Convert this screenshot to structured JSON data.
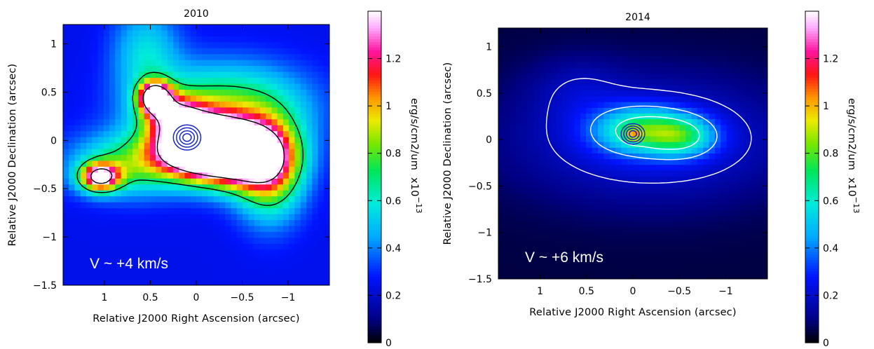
{
  "chart_data": [
    {
      "type": "heatmap",
      "title": "2010",
      "xlabel": "Relative J2000 Right Ascension (arcsec)",
      "ylabel": "Relative J2000 Declination (arcsec)",
      "xlim": [
        1.45,
        -1.45
      ],
      "ylim": [
        -1.5,
        1.2
      ],
      "xticks": [
        1,
        0.5,
        0,
        -0.5,
        -1
      ],
      "xtick_labels": [
        "1",
        "0.5",
        "0",
        "−0.5",
        "−1"
      ],
      "yticks": [
        1,
        0.5,
        0,
        -0.5,
        -1,
        -1.5
      ],
      "ytick_labels": [
        "1",
        "0.5",
        "0",
        "−0.5",
        "−1",
        "−1.5"
      ],
      "annotation": "V ~ +4 km/s",
      "colorbar": {
        "label": "erg/s/cm2/um",
        "scale": "x10",
        "scale_exp": "−13",
        "range": [
          0,
          1.4
        ],
        "ticks": [
          0,
          0.2,
          0.4,
          0.6,
          0.8,
          1,
          1.2
        ],
        "tick_labels": [
          "0",
          "0.2",
          "0.4",
          "0.6",
          "0.8",
          "1",
          "1.2"
        ]
      },
      "emission": {
        "background": 0.25,
        "components": [
          {
            "x": 0.0,
            "y": -0.05,
            "sx": 0.32,
            "sy": 0.2,
            "amp": 1.5
          },
          {
            "x": -0.45,
            "y": -0.15,
            "sx": 0.35,
            "sy": 0.22,
            "amp": 1.4
          },
          {
            "x": 0.45,
            "y": 0.45,
            "sx": 0.12,
            "sy": 0.11,
            "amp": 1.2
          },
          {
            "x": 0.25,
            "y": 0.28,
            "sx": 0.22,
            "sy": 0.14,
            "amp": 0.6
          },
          {
            "x": 1.05,
            "y": -0.38,
            "sx": 0.15,
            "sy": 0.1,
            "amp": 1.05
          },
          {
            "x": 0.7,
            "y": -0.25,
            "sx": 0.45,
            "sy": 0.22,
            "amp": 0.5
          },
          {
            "x": -0.8,
            "y": -0.3,
            "sx": 0.25,
            "sy": 0.35,
            "amp": 0.7
          },
          {
            "x": -0.3,
            "y": 0.35,
            "sx": 0.6,
            "sy": 0.3,
            "amp": 0.55
          },
          {
            "x": 0.55,
            "y": 0.9,
            "sx": 0.25,
            "sy": 0.35,
            "amp": 0.3
          }
        ]
      },
      "contour_levels": [
        0.7,
        1.35
      ],
      "contour_color": "#000000",
      "compact_source": {
        "x": 0.1,
        "y": 0.03,
        "color": "#1a28c8",
        "radii": [
          0.04,
          0.07,
          0.1,
          0.13
        ]
      }
    },
    {
      "type": "heatmap",
      "title": "2014",
      "xlabel": "Relative J2000 Right Ascension (arcsec)",
      "ylabel": "Relative J2000 Declination (arcsec)",
      "xlim": [
        1.45,
        -1.45
      ],
      "ylim": [
        -1.5,
        1.2
      ],
      "xticks": [
        1,
        0.5,
        0,
        -0.5,
        -1
      ],
      "xtick_labels": [
        "1",
        "0.5",
        "0",
        "−0.5",
        "−1"
      ],
      "yticks": [
        1,
        0.5,
        0,
        -0.5,
        -1,
        -1.5
      ],
      "ytick_labels": [
        "1",
        "0.5",
        "0",
        "−0.5",
        "−1",
        "−1.5"
      ],
      "annotation": "V ~ +6 km/s",
      "colorbar": {
        "label": "erg/s/cm2/um",
        "scale": "x10",
        "scale_exp": "−13",
        "range": [
          0,
          1.4
        ],
        "ticks": [
          0,
          0.2,
          0.4,
          0.6,
          0.8,
          1,
          1.2
        ],
        "tick_labels": [
          "0",
          "0.2",
          "0.4",
          "0.6",
          "0.8",
          "1",
          "1.2"
        ]
      },
      "emission": {
        "background": 0.05,
        "components": [
          {
            "x": -0.1,
            "y": 0.1,
            "sx": 0.35,
            "sy": 0.17,
            "amp": 0.5
          },
          {
            "x": -0.55,
            "y": 0.03,
            "sx": 0.25,
            "sy": 0.15,
            "amp": 0.35
          },
          {
            "x": 0.0,
            "y": 0.05,
            "sx": 0.06,
            "sy": 0.05,
            "amp": 0.3
          },
          {
            "x": -0.2,
            "y": 0.0,
            "sx": 1.0,
            "sy": 0.45,
            "amp": 0.22
          },
          {
            "x": 0.6,
            "y": 0.55,
            "sx": 0.35,
            "sy": 0.25,
            "amp": 0.08
          }
        ]
      },
      "contour_levels": [
        0.18,
        0.38,
        0.62
      ],
      "contour_color": "#ffffff",
      "compact_source": {
        "x": 0.0,
        "y": 0.06,
        "color": "#1a28c8",
        "radii": [
          0.035,
          0.06,
          0.085,
          0.11
        ]
      }
    }
  ]
}
